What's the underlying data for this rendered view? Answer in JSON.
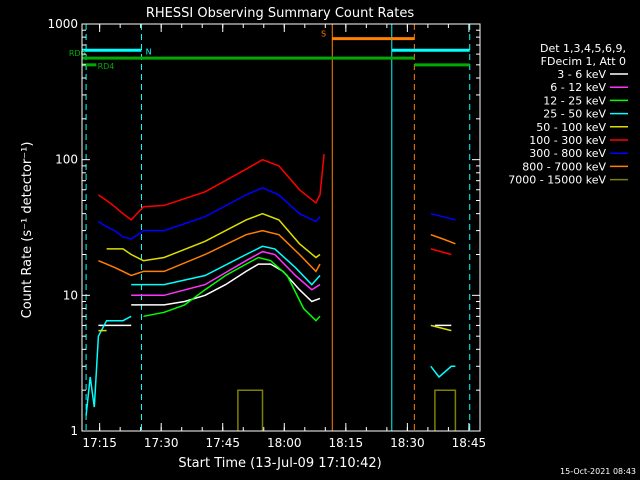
{
  "chart_data": {
    "type": "line",
    "title": "RHESSI Observing Summary Count Rates",
    "xlabel": "Start Time (13-Jul-09 17:10:42)",
    "ylabel": "Count Rate (s⁻¹ detector⁻¹)",
    "y_scale": "log",
    "ylim": [
      1,
      1000
    ],
    "xlim_minutes_after_start": [
      0,
      97
    ],
    "x_tick_labels": [
      "17:15",
      "17:30",
      "17:45",
      "18:00",
      "18:15",
      "18:30",
      "18:45"
    ],
    "y_tick_labels": [
      "1",
      "10",
      "100",
      "1000"
    ],
    "legend": {
      "header_line1": "Det 1,3,4,5,6,9,",
      "header_line2": "FDecim 1, Att 0",
      "entries": [
        {
          "label": "3 - 6 keV",
          "color": "#ffffff"
        },
        {
          "label": "6 - 12 keV",
          "color": "#ff33ff"
        },
        {
          "label": "12 - 25 keV",
          "color": "#00ff00"
        },
        {
          "label": "25 - 50 keV",
          "color": "#00ffff"
        },
        {
          "label": "50 - 100 keV",
          "color": "#dddd00"
        },
        {
          "label": "100 - 300 keV",
          "color": "#ff0000"
        },
        {
          "label": "300 - 800 keV",
          "color": "#0000ff"
        },
        {
          "label": "800 - 7000 keV",
          "color": "#ff8000"
        },
        {
          "label": "7000 - 15000 keV",
          "color": "#808000"
        }
      ]
    },
    "flags": [
      {
        "label": "N",
        "color": "#00ffff"
      },
      {
        "label": "S",
        "color": "#ff8000"
      },
      {
        "label": "RD0",
        "color": "#00aa00"
      },
      {
        "label": "RD4",
        "color": "#00aa00"
      }
    ],
    "series_description": "Approximate count-rate profiles read from the plot; gaps indicate no data.",
    "series": [
      {
        "name": "3 - 6 keV",
        "color": "#ffffff",
        "segments": [
          [
            [
              4,
              6
            ],
            [
              6,
              6
            ],
            [
              8,
              6
            ],
            [
              12,
              6
            ]
          ],
          [
            [
              12,
              8.5
            ],
            [
              15,
              8.5
            ],
            [
              20,
              8.5
            ],
            [
              25,
              9
            ],
            [
              30,
              10
            ],
            [
              35,
              12
            ],
            [
              40,
              15
            ],
            [
              43,
              17
            ],
            [
              46,
              17
            ],
            [
              49,
              15
            ],
            [
              53,
              11
            ],
            [
              56,
              9
            ],
            [
              58,
              9.5
            ]
          ],
          [
            [
              86,
              6
            ],
            [
              90,
              6
            ]
          ]
        ]
      },
      {
        "name": "6 - 12 keV",
        "color": "#ff33ff",
        "segments": [
          [
            [
              12,
              10
            ],
            [
              20,
              10
            ],
            [
              30,
              12
            ],
            [
              40,
              18
            ],
            [
              44,
              21
            ],
            [
              47,
              20
            ],
            [
              52,
              14
            ],
            [
              56,
              11
            ],
            [
              58,
              12
            ]
          ]
        ]
      },
      {
        "name": "12 - 25 keV",
        "color": "#00ff00",
        "segments": [
          [
            [
              15,
              7
            ],
            [
              20,
              7.5
            ],
            [
              25,
              8.5
            ],
            [
              30,
              11
            ],
            [
              35,
              14
            ],
            [
              40,
              17
            ],
            [
              43,
              19
            ],
            [
              46,
              18
            ],
            [
              50,
              14
            ],
            [
              54,
              8
            ],
            [
              57,
              6.5
            ],
            [
              58,
              7
            ]
          ]
        ]
      },
      {
        "name": "25 - 50 keV",
        "color": "#00ffff",
        "segments": [
          [
            [
              1,
              1.3
            ],
            [
              2,
              2.5
            ],
            [
              3,
              1.5
            ],
            [
              4,
              5
            ],
            [
              6,
              6.5
            ],
            [
              10,
              6.5
            ],
            [
              12,
              7
            ]
          ],
          [
            [
              12,
              12
            ],
            [
              20,
              12
            ],
            [
              30,
              14
            ],
            [
              40,
              20
            ],
            [
              44,
              23
            ],
            [
              47,
              22
            ],
            [
              52,
              16
            ],
            [
              56,
              12
            ],
            [
              58,
              14
            ]
          ],
          [
            [
              85,
              3
            ],
            [
              87,
              2.5
            ],
            [
              90,
              3
            ],
            [
              91,
              3
            ]
          ]
        ]
      },
      {
        "name": "50 - 100 keV",
        "color": "#dddd00",
        "segments": [
          [
            [
              4,
              5.5
            ],
            [
              6,
              5.5
            ]
          ],
          [
            [
              6,
              22
            ],
            [
              10,
              22
            ],
            [
              12,
              20
            ],
            [
              15,
              18
            ],
            [
              20,
              19
            ],
            [
              30,
              25
            ],
            [
              40,
              36
            ],
            [
              44,
              40
            ],
            [
              48,
              36
            ],
            [
              53,
              24
            ],
            [
              57,
              19
            ],
            [
              58,
              20
            ]
          ],
          [
            [
              85,
              6
            ],
            [
              90,
              5.5
            ]
          ]
        ]
      },
      {
        "name": "100 - 300 keV",
        "color": "#ff0000",
        "segments": [
          [
            [
              4,
              55
            ],
            [
              6,
              50
            ],
            [
              8,
              45
            ],
            [
              10,
              40
            ],
            [
              12,
              36
            ],
            [
              15,
              45
            ],
            [
              20,
              46
            ],
            [
              30,
              58
            ],
            [
              40,
              85
            ],
            [
              44,
              100
            ],
            [
              48,
              90
            ],
            [
              53,
              60
            ],
            [
              57,
              48
            ],
            [
              58,
              55
            ],
            [
              59,
              110
            ]
          ],
          [
            [
              85,
              22
            ],
            [
              90,
              20
            ]
          ]
        ]
      },
      {
        "name": "300 - 800 keV",
        "color": "#0000ff",
        "segments": [
          [
            [
              4,
              35
            ],
            [
              6,
              32
            ],
            [
              8,
              30
            ],
            [
              10,
              27
            ],
            [
              12,
              26
            ],
            [
              15,
              30
            ],
            [
              20,
              30
            ],
            [
              30,
              38
            ],
            [
              40,
              55
            ],
            [
              44,
              62
            ],
            [
              48,
              55
            ],
            [
              53,
              40
            ],
            [
              57,
              35
            ],
            [
              58,
              38
            ]
          ],
          [
            [
              85,
              40
            ],
            [
              88,
              38
            ],
            [
              91,
              36
            ]
          ]
        ]
      },
      {
        "name": "800 - 7000 keV",
        "color": "#ff8000",
        "segments": [
          [
            [
              4,
              18
            ],
            [
              6,
              17
            ],
            [
              8,
              16
            ],
            [
              10,
              15
            ],
            [
              12,
              14
            ],
            [
              15,
              15
            ],
            [
              20,
              15
            ],
            [
              30,
              20
            ],
            [
              40,
              28
            ],
            [
              44,
              30
            ],
            [
              48,
              28
            ],
            [
              53,
              20
            ],
            [
              57,
              15
            ],
            [
              58,
              17
            ]
          ],
          [
            [
              85,
              28
            ],
            [
              88,
              26
            ],
            [
              91,
              24
            ]
          ]
        ]
      },
      {
        "name": "7000 - 15000 keV",
        "color": "#808000",
        "segments": [
          [
            [
              38,
              1
            ],
            [
              38,
              2
            ],
            [
              44,
              2
            ],
            [
              44,
              1
            ]
          ],
          [
            [
              86,
              1
            ],
            [
              86,
              2
            ],
            [
              91,
              2
            ],
            [
              91,
              1
            ]
          ]
        ]
      }
    ],
    "vertical_lines": [
      {
        "x": 1,
        "color": "#00ffff",
        "dashed": true
      },
      {
        "x": 14.5,
        "color": "#00ffff",
        "dashed": true
      },
      {
        "x": 61,
        "color": "#ff8000",
        "dashed": false
      },
      {
        "x": 75.5,
        "color": "#00ffff",
        "dashed": false
      },
      {
        "x": 81,
        "color": "#ff8000",
        "dashed": true
      },
      {
        "x": 94.5,
        "color": "#00ffff",
        "dashed": true
      }
    ],
    "flag_bars": [
      {
        "name": "N",
        "color": "#00ffff",
        "y": 640,
        "segments": [
          [
            0,
            14.5
          ],
          [
            75.5,
            94.5
          ]
        ]
      },
      {
        "name": "S",
        "color": "#ff8000",
        "y": 780,
        "segments": [
          [
            61,
            81
          ]
        ]
      },
      {
        "name": "RD0",
        "color": "#00aa00",
        "y": 560,
        "segments": [
          [
            0,
            81
          ]
        ]
      },
      {
        "name": "RD4",
        "color": "#00aa00",
        "y": 500,
        "segments": [
          [
            0,
            3.5
          ],
          [
            81,
            94.5
          ]
        ]
      }
    ]
  },
  "footer": {
    "date_stamp": "15-Oct-2021 08:43"
  }
}
